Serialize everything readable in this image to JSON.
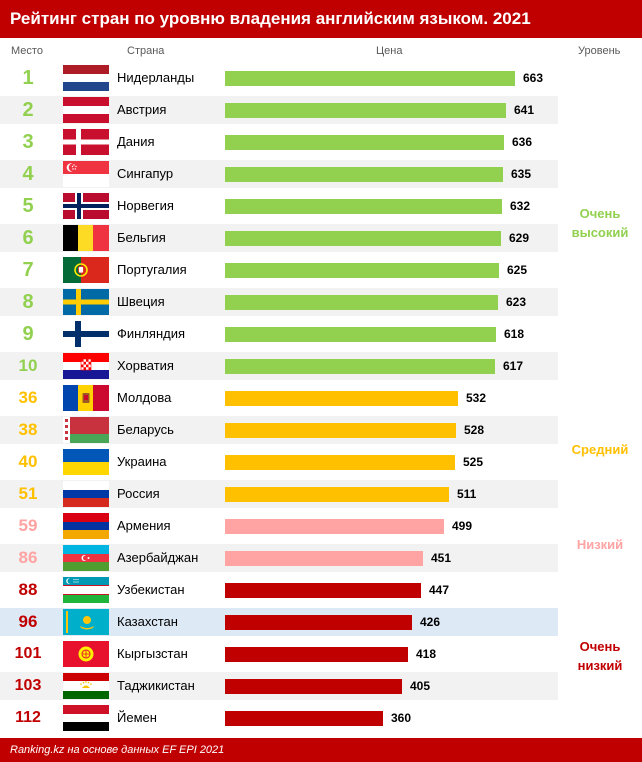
{
  "header": {
    "title": "Рейтинг стран по уровню владения английским языком. 2021"
  },
  "columns": {
    "rank": "Место",
    "country": "Страна",
    "value": "Цена",
    "level": "Уровень"
  },
  "footer": {
    "source": "Ranking.kz на основе данных EF EPI 2021"
  },
  "colors": {
    "very_high": "#92d050",
    "high": "#ffc000",
    "moderate": "#ffa3a3",
    "low": "#c00000",
    "header": "#c00000",
    "highlight_row": "#dde9f5"
  },
  "levels": [
    {
      "key": "very_high",
      "label": "Очень высокий"
    },
    {
      "key": "high",
      "label": "Средний"
    },
    {
      "key": "moderate",
      "label": "Низкий"
    },
    {
      "key": "low",
      "label": "Очень низкий"
    }
  ],
  "chart_data": {
    "type": "bar",
    "orientation": "horizontal",
    "title": "Рейтинг стран по уровню владения английским языком. 2021",
    "xlim": [
      0,
      663
    ],
    "rows": [
      {
        "rank": "1",
        "country": "Нидерланды",
        "value": 663,
        "level": "very_high",
        "flag": "netherlands-flag"
      },
      {
        "rank": "2",
        "country": "Австрия",
        "value": 641,
        "level": "very_high",
        "flag": "austria-flag"
      },
      {
        "rank": "3",
        "country": "Дания",
        "value": 636,
        "level": "very_high",
        "flag": "denmark-flag"
      },
      {
        "rank": "4",
        "country": "Сингапур",
        "value": 635,
        "level": "very_high",
        "flag": "singapore-flag"
      },
      {
        "rank": "5",
        "country": "Норвегия",
        "value": 632,
        "level": "very_high",
        "flag": "norway-flag"
      },
      {
        "rank": "6",
        "country": "Бельгия",
        "value": 629,
        "level": "very_high",
        "flag": "belgium-flag"
      },
      {
        "rank": "7",
        "country": "Португалия",
        "value": 625,
        "level": "very_high",
        "flag": "portugal-flag"
      },
      {
        "rank": "8",
        "country": "Швеция",
        "value": 623,
        "level": "very_high",
        "flag": "sweden-flag"
      },
      {
        "rank": "9",
        "country": "Финляндия",
        "value": 618,
        "level": "very_high",
        "flag": "finland-flag"
      },
      {
        "rank": "10",
        "country": "Хорватия",
        "value": 617,
        "level": "very_high",
        "flag": "croatia-flag"
      },
      {
        "rank": "36",
        "country": "Молдова",
        "value": 532,
        "level": "high",
        "flag": "moldova-flag"
      },
      {
        "rank": "38",
        "country": "Беларусь",
        "value": 528,
        "level": "high",
        "flag": "belarus-flag"
      },
      {
        "rank": "40",
        "country": "Украина",
        "value": 525,
        "level": "high",
        "flag": "ukraine-flag"
      },
      {
        "rank": "51",
        "country": "Россия",
        "value": 511,
        "level": "high",
        "flag": "russia-flag"
      },
      {
        "rank": "59",
        "country": "Армения",
        "value": 499,
        "level": "moderate",
        "flag": "armenia-flag"
      },
      {
        "rank": "86",
        "country": "Азербайджан",
        "value": 451,
        "level": "moderate",
        "flag": "azerbaijan-flag"
      },
      {
        "rank": "88",
        "country": "Узбекистан",
        "value": 447,
        "level": "low",
        "flag": "uzbekistan-flag"
      },
      {
        "rank": "96",
        "country": "Казахстан",
        "value": 426,
        "level": "low",
        "flag": "kazakhstan-flag",
        "highlight": true
      },
      {
        "rank": "101",
        "country": "Кыргызстан",
        "value": 418,
        "level": "low",
        "flag": "kyrgyzstan-flag"
      },
      {
        "rank": "103",
        "country": "Таджикистан",
        "value": 405,
        "level": "low",
        "flag": "tajikistan-flag"
      },
      {
        "rank": "112",
        "country": "Йемен",
        "value": 360,
        "level": "low",
        "flag": "yemen-flag"
      }
    ]
  }
}
